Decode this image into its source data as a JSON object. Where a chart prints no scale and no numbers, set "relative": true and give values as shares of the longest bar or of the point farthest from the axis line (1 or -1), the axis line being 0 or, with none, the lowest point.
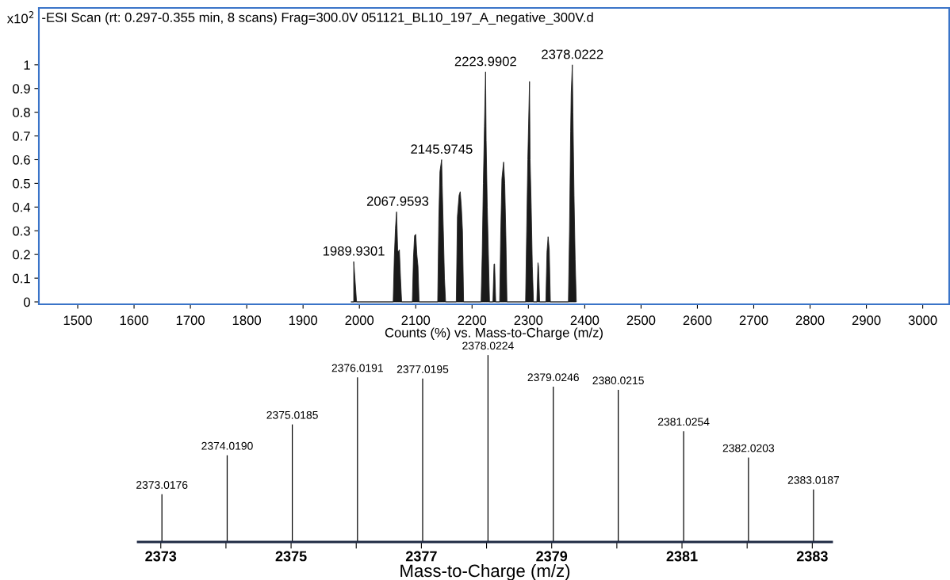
{
  "chart_data": [
    {
      "type": "area",
      "title": "-ESI Scan (rt: 0.297-0.355 min, 8 scans) Frag=300.0V 051121_BL10_197_A_negative_300V.d",
      "xlabel": "Counts (%) vs. Mass-to-Charge (m/z)",
      "ylabel": "x10$^{2}$",
      "series": [
        {
          "color": "#1a1a1a",
          "x": [
            1985,
            1989.93,
            1989.94,
            1995,
            2060,
            2062,
            2064,
            2066,
            2067.96,
            2069,
            2071,
            2073,
            2075,
            2094,
            2096,
            2098,
            2100,
            2102,
            2104,
            2106,
            2139,
            2141,
            2143,
            2145.97,
            2147,
            2149,
            2151,
            2153,
            2172,
            2174,
            2177,
            2179,
            2181,
            2183,
            2185,
            2216,
            2218,
            2220,
            2222,
            2223.99,
            2225,
            2227,
            2229,
            2231,
            2237,
            2239,
            2240,
            2242,
            2249,
            2251,
            2253,
            2256,
            2258,
            2260,
            2262,
            2295,
            2297,
            2299,
            2302,
            2303,
            2305,
            2307,
            2309,
            2315,
            2317,
            2318,
            2320,
            2331,
            2333,
            2335,
            2337,
            2339,
            2371,
            2373,
            2375,
            2376,
            2378.02,
            2379,
            2381,
            2383,
            2385
          ],
          "values": [
            0,
            0,
            0.17,
            0,
            0,
            0.19,
            0.31,
            0.38,
            0.22,
            0.21,
            0.22,
            0.1,
            0,
            0,
            0.19,
            0.28,
            0.285,
            0.2,
            0.15,
            0,
            0,
            0.35,
            0.55,
            0.6,
            0.49,
            0.3,
            0.1,
            0,
            0,
            0.36,
            0.45,
            0.465,
            0.4,
            0.3,
            0,
            0,
            0.2,
            0.5,
            0.74,
            0.97,
            0.68,
            0.4,
            0.2,
            0,
            0,
            0.16,
            0.16,
            0,
            0,
            0.3,
            0.52,
            0.59,
            0.5,
            0.28,
            0,
            0,
            0.3,
            0.6,
            0.93,
            0.6,
            0.4,
            0.15,
            0,
            0,
            0.165,
            0.15,
            0,
            0,
            0.21,
            0.275,
            0.22,
            0,
            0,
            0.3,
            0.72,
            0.88,
            1.0,
            0.8,
            0.45,
            0.18,
            0
          ]
        }
      ],
      "xlim": [
        1431,
        3047
      ],
      "xticks": [
        1500,
        1600,
        1700,
        1800,
        1900,
        2000,
        2100,
        2200,
        2300,
        2400,
        2500,
        2600,
        2700,
        2800,
        2900,
        3000
      ],
      "ylim": [
        -0.01,
        1.24
      ],
      "yticks": [
        0,
        0.1,
        0.2,
        0.3,
        0.4,
        0.5,
        0.6,
        0.7,
        0.8,
        0.9,
        1
      ],
      "grid": false,
      "legend": false,
      "annotations": [
        {
          "text": "1989.9301",
          "x": 1989.93,
          "y": 0.17
        },
        {
          "text": "2067.9593",
          "x": 2067.96,
          "y": 0.38
        },
        {
          "text": "2145.9745",
          "x": 2145.97,
          "y": 0.6
        },
        {
          "text": "2223.9902",
          "x": 2223.99,
          "y": 0.97
        },
        {
          "text": "2378.0222",
          "x": 2378.02,
          "y": 1.0
        }
      ]
    },
    {
      "type": "bar",
      "relative": true,
      "xlabel": "Mass-to-Charge (m/z)",
      "x": [
        2373.0176,
        2374.019,
        2375.0185,
        2376.0191,
        2377.0195,
        2378.0224,
        2379.0246,
        2380.0215,
        2381.0254,
        2382.0203,
        2383.0187
      ],
      "values": [
        0.255,
        0.464,
        0.629,
        0.881,
        0.874,
        1,
        0.831,
        0.814,
        0.593,
        0.452,
        0.281
      ],
      "annotations": [
        {
          "text": "2373.0176",
          "x": 2373.0176,
          "y": 0.255
        },
        {
          "text": "2374.0190",
          "x": 2374.019,
          "y": 0.464
        },
        {
          "text": "2375.0185",
          "x": 2375.0185,
          "y": 0.629
        },
        {
          "text": "2376.0191",
          "x": 2376.0191,
          "y": 0.881
        },
        {
          "text": "2377.0195",
          "x": 2377.0195,
          "y": 0.874
        },
        {
          "text": "2378.0224",
          "x": 2378.0224,
          "y": 1
        },
        {
          "text": "2379.0246",
          "x": 2379.0246,
          "y": 0.831
        },
        {
          "text": "2380.0215",
          "x": 2380.0215,
          "y": 0.814
        },
        {
          "text": "2381.0254",
          "x": 2381.0254,
          "y": 0.593
        },
        {
          "text": "2382.0203",
          "x": 2382.0203,
          "y": 0.452
        },
        {
          "text": "2383.0187",
          "x": 2383.0187,
          "y": 0.281
        }
      ],
      "color": "#000000",
      "xlim": [
        2372.65,
        2383.3
      ],
      "xticks": [
        2373,
        {
          "value": 2374,
          "label": null
        },
        2375,
        {
          "value": 2376,
          "label": null
        },
        2377,
        {
          "value": 2378,
          "label": null
        },
        2379,
        {
          "value": 2380,
          "label": null
        },
        2381,
        {
          "value": 2382,
          "label": null
        },
        2383
      ],
      "grid": false,
      "legend": false
    }
  ]
}
